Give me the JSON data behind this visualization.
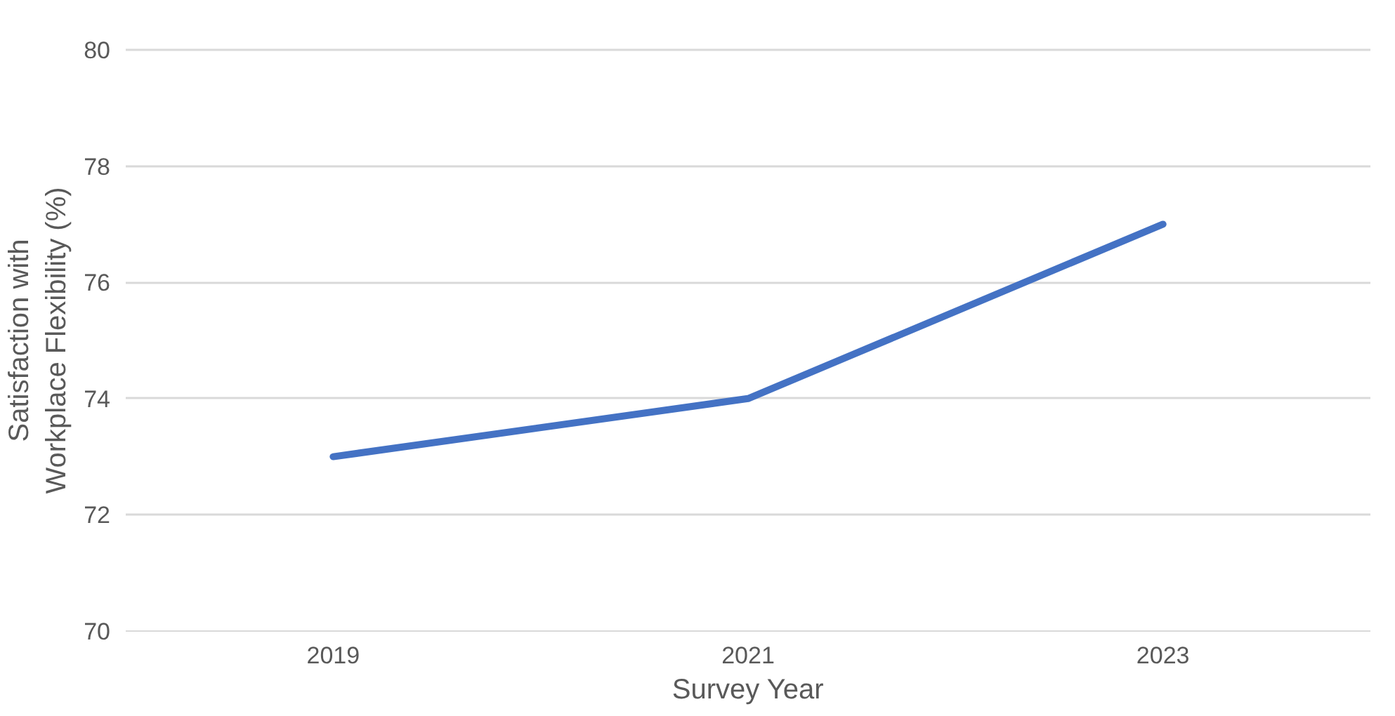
{
  "chart_data": {
    "type": "line",
    "xlabel": "Survey Year",
    "ylabel": "Satisfaction with Workplace Flexibility (%)",
    "categories": [
      "2019",
      "2021",
      "2023"
    ],
    "series": [
      {
        "color": "#4472c4",
        "values": [
          73,
          74,
          77
        ]
      }
    ],
    "ylim": [
      70,
      80
    ],
    "yticks": [
      70,
      72,
      74,
      76,
      78,
      80
    ],
    "grid": "y",
    "marker": "none",
    "line_style": "solid"
  }
}
